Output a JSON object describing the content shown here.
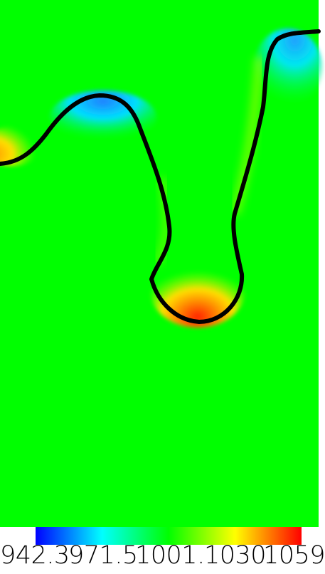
{
  "colorbar": {
    "labels": [
      "942.3",
      "971.5",
      "1001.",
      "1030.",
      "1059"
    ],
    "colors": [
      "#0000ff",
      "#00ffff",
      "#00ff00",
      "#ffff00",
      "#ff0000"
    ]
  },
  "field": {
    "background_color": "#00ff00",
    "interface_color": "#000000"
  }
}
